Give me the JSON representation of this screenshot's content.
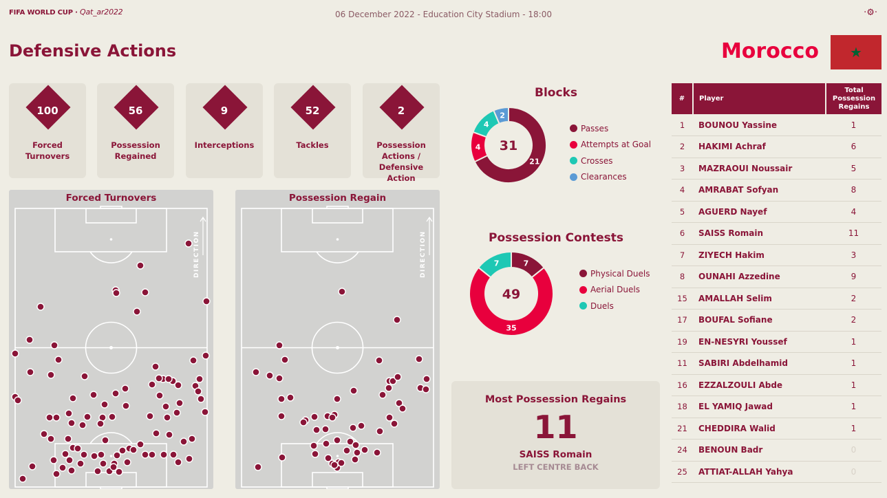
{
  "header": {
    "logo_text": "FIFA WORLD CUP",
    "logo_qatar": "Qat_ar2022",
    "match_info": "06 December 2022 - Education City Stadium - 18:00",
    "page_title": "Defensive Actions",
    "team_name": "Morocco"
  },
  "stats": [
    {
      "value": "100",
      "label": "Forced Turnovers"
    },
    {
      "value": "56",
      "label": "Possession Regained"
    },
    {
      "value": "9",
      "label": "Interceptions"
    },
    {
      "value": "52",
      "label": "Tackles"
    },
    {
      "value": "2",
      "label": "Possession Actions / Defensive Action"
    }
  ],
  "pitches": {
    "forced_title": "Forced Turnovers",
    "regain_title": "Possession Regain",
    "direction_label": "DIRECTION"
  },
  "blocks": {
    "title": "Blocks",
    "total": "31",
    "segments": [
      {
        "name": "Passes",
        "value": 21,
        "color": "#8a1538"
      },
      {
        "name": "Attempts at Goal",
        "value": 4,
        "color": "#e8003d"
      },
      {
        "name": "Crosses",
        "value": 4,
        "color": "#1ec8b4"
      },
      {
        "name": "Clearances",
        "value": 2,
        "color": "#5b9bd5"
      }
    ]
  },
  "contests": {
    "title": "Possession Contests",
    "total": "49",
    "segments": [
      {
        "name": "Physical Duels",
        "value": 7,
        "color": "#8a1538"
      },
      {
        "name": "Aerial Duels",
        "value": 35,
        "color": "#e8003d"
      },
      {
        "name": "Duels",
        "value": 7,
        "color": "#1ec8b4"
      }
    ]
  },
  "most_regains": {
    "title": "Most Possession Regains",
    "value": "11",
    "player": "SAISS Romain",
    "position": "LEFT CENTRE BACK"
  },
  "table": {
    "headers": {
      "num": "#",
      "player": "Player",
      "total": "Total Possession Regains"
    },
    "rows": [
      {
        "num": "1",
        "player": "BOUNOU Yassine",
        "total": "1"
      },
      {
        "num": "2",
        "player": "HAKIMI Achraf",
        "total": "6"
      },
      {
        "num": "3",
        "player": "MAZRAOUI Noussair",
        "total": "5"
      },
      {
        "num": "4",
        "player": "AMRABAT Sofyan",
        "total": "8"
      },
      {
        "num": "5",
        "player": "AGUERD Nayef",
        "total": "4"
      },
      {
        "num": "6",
        "player": "SAISS Romain",
        "total": "11"
      },
      {
        "num": "7",
        "player": "ZIYECH Hakim",
        "total": "3"
      },
      {
        "num": "8",
        "player": "OUNAHI Azzedine",
        "total": "9"
      },
      {
        "num": "15",
        "player": "AMALLAH Selim",
        "total": "2"
      },
      {
        "num": "17",
        "player": "BOUFAL Sofiane",
        "total": "2"
      },
      {
        "num": "19",
        "player": "EN-NESYRI Youssef",
        "total": "1"
      },
      {
        "num": "11",
        "player": "SABIRI Abdelhamid",
        "total": "1"
      },
      {
        "num": "16",
        "player": "EZZALZOULI Abde",
        "total": "1"
      },
      {
        "num": "18",
        "player": "EL YAMIQ Jawad",
        "total": "1"
      },
      {
        "num": "21",
        "player": "CHEDDIRA Walid",
        "total": "1"
      },
      {
        "num": "24",
        "player": "BENOUN Badr",
        "total": "0"
      },
      {
        "num": "25",
        "player": "ATTIAT-ALLAH Yahya",
        "total": "0"
      }
    ]
  }
}
